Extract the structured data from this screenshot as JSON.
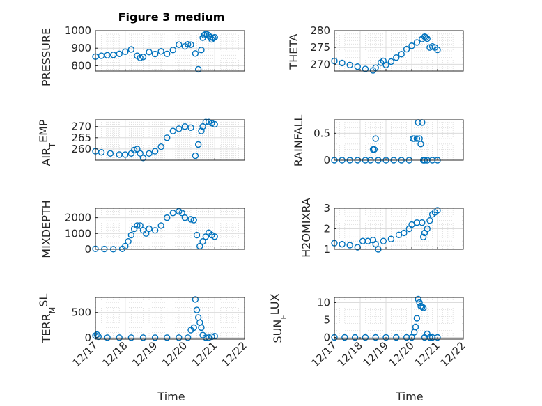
{
  "figure": {
    "title": "Figure 3 medium"
  },
  "colors": {
    "marker": "#0072BD",
    "axis": "#262626",
    "grid": "#dcdcdc"
  },
  "chart_data": [
    {
      "type": "scatter",
      "ylabel": "PRESSURE",
      "xlabel": "",
      "ylim": [
        770,
        1000
      ],
      "yticks": [
        800,
        900,
        1000
      ],
      "xticks": [
        17,
        18,
        19,
        20,
        21,
        22
      ],
      "xtick_labels": [
        "12/17",
        "12/18",
        "12/19",
        "12/20",
        "12/21",
        "12/22"
      ],
      "x": [
        17.0,
        17.2,
        17.4,
        17.6,
        17.8,
        18.0,
        18.2,
        18.4,
        18.5,
        18.6,
        18.8,
        19.0,
        19.2,
        19.4,
        19.6,
        19.8,
        20.0,
        20.1,
        20.2,
        20.35,
        20.45,
        20.55,
        20.6,
        20.65,
        20.7,
        20.75,
        20.8,
        20.85,
        20.9,
        20.95,
        21.0
      ],
      "y": [
        852,
        857,
        860,
        862,
        868,
        880,
        893,
        857,
        845,
        850,
        878,
        867,
        882,
        868,
        890,
        920,
        910,
        922,
        920,
        870,
        780,
        890,
        960,
        975,
        980,
        978,
        972,
        962,
        950,
        958,
        962
      ]
    },
    {
      "type": "scatter",
      "ylabel": "THETA",
      "xlabel": "",
      "ylim": [
        268,
        280
      ],
      "yticks": [
        270,
        275,
        280
      ],
      "xticks": [
        17,
        18,
        19,
        20,
        21,
        22
      ],
      "xtick_labels": [
        "12/17",
        "12/18",
        "12/19",
        "12/20",
        "12/21",
        "12/22"
      ],
      "x": [
        17.0,
        17.3,
        17.6,
        17.9,
        18.2,
        18.5,
        18.6,
        18.8,
        18.9,
        19.0,
        19.2,
        19.4,
        19.6,
        19.8,
        20.0,
        20.2,
        20.4,
        20.5,
        20.55,
        20.6,
        20.7,
        20.8,
        20.9,
        21.0
      ],
      "y": [
        271,
        270.4,
        269.8,
        269.3,
        268.6,
        268.2,
        269,
        270.5,
        271,
        269.8,
        270.8,
        272,
        273,
        274.5,
        275.5,
        276.5,
        277.5,
        278.2,
        278,
        277.6,
        275,
        275.3,
        275,
        274.3
      ]
    },
    {
      "type": "scatter",
      "ylabel": "AIR_TEMP",
      "xlabel": "",
      "ylim": [
        255,
        273
      ],
      "yticks": [
        260,
        265,
        270
      ],
      "xticks": [
        17,
        18,
        19,
        20,
        21,
        22
      ],
      "xtick_labels": [
        "12/17",
        "12/18",
        "12/19",
        "12/20",
        "12/21",
        "12/22"
      ],
      "x": [
        17.0,
        17.2,
        17.5,
        17.8,
        18.0,
        18.2,
        18.3,
        18.4,
        18.5,
        18.6,
        18.8,
        19.0,
        19.2,
        19.4,
        19.6,
        19.8,
        20.0,
        20.2,
        20.35,
        20.45,
        20.55,
        20.6,
        20.7,
        20.8,
        20.9,
        21.0
      ],
      "y": [
        259,
        258.5,
        258,
        257.5,
        257.5,
        258,
        259.5,
        260,
        258,
        256,
        258,
        259,
        261,
        265,
        268,
        269,
        270,
        269.5,
        257,
        262,
        268,
        270,
        272,
        272,
        271.5,
        271
      ]
    },
    {
      "type": "scatter",
      "ylabel": "RAINFALL",
      "xlabel": "",
      "ylim": [
        0,
        0.75
      ],
      "yticks": [
        0,
        0.5
      ],
      "xticks": [
        17,
        18,
        19,
        20,
        21,
        22
      ],
      "xtick_labels": [
        "12/17",
        "12/18",
        "12/19",
        "12/20",
        "12/21",
        "12/22"
      ],
      "x": [
        17.0,
        17.3,
        17.6,
        17.9,
        18.2,
        18.4,
        18.5,
        18.55,
        18.6,
        18.7,
        19.0,
        19.3,
        19.6,
        19.9,
        20.05,
        20.1,
        20.2,
        20.25,
        20.3,
        20.35,
        20.4,
        20.45,
        20.5,
        20.6,
        20.8,
        21.0
      ],
      "y": [
        0,
        0,
        0,
        0,
        0,
        0,
        0.2,
        0.2,
        0.4,
        0,
        0,
        0,
        0,
        0,
        0.4,
        0.4,
        0.4,
        0.7,
        0.4,
        0.3,
        0.7,
        0,
        0,
        0,
        0,
        0
      ]
    },
    {
      "type": "scatter",
      "ylabel": "MIXDEPTH",
      "xlabel": "",
      "ylim": [
        0,
        2600
      ],
      "yticks": [
        0,
        1000,
        2000
      ],
      "xticks": [
        17,
        18,
        19,
        20,
        21,
        22
      ],
      "xtick_labels": [
        "12/17",
        "12/18",
        "12/19",
        "12/20",
        "12/21",
        "12/22"
      ],
      "x": [
        17.0,
        17.3,
        17.6,
        17.9,
        18.0,
        18.1,
        18.2,
        18.3,
        18.4,
        18.5,
        18.6,
        18.7,
        18.8,
        19.0,
        19.2,
        19.4,
        19.6,
        19.8,
        19.9,
        20.0,
        20.2,
        20.3,
        20.4,
        20.5,
        20.6,
        20.7,
        20.8,
        20.9,
        21.0
      ],
      "y": [
        30,
        20,
        10,
        30,
        200,
        500,
        900,
        1300,
        1500,
        1500,
        1200,
        1000,
        1300,
        1200,
        1500,
        2000,
        2300,
        2400,
        2300,
        2000,
        1900,
        1850,
        900,
        200,
        500,
        800,
        1050,
        900,
        800
      ]
    },
    {
      "type": "scatter",
      "ylabel": "H2OMIXRA",
      "xlabel": "",
      "ylim": [
        1,
        3
      ],
      "yticks": [
        1,
        2,
        3
      ],
      "xticks": [
        17,
        18,
        19,
        20,
        21,
        22
      ],
      "xtick_labels": [
        "12/17",
        "12/18",
        "12/19",
        "12/20",
        "12/21",
        "12/22"
      ],
      "x": [
        17.0,
        17.3,
        17.6,
        17.9,
        18.1,
        18.3,
        18.5,
        18.6,
        18.7,
        18.9,
        19.2,
        19.5,
        19.7,
        19.9,
        20.0,
        20.2,
        20.4,
        20.45,
        20.5,
        20.6,
        20.7,
        20.8,
        20.9,
        21.0
      ],
      "y": [
        1.3,
        1.25,
        1.2,
        1.1,
        1.4,
        1.4,
        1.45,
        1.25,
        1.0,
        1.4,
        1.5,
        1.7,
        1.8,
        2.0,
        2.2,
        2.3,
        2.3,
        1.6,
        1.8,
        2.0,
        2.4,
        2.7,
        2.8,
        2.9
      ]
    },
    {
      "type": "scatter",
      "ylabel": "TERR_MSL",
      "xlabel": "Time",
      "ylim": [
        -30,
        800
      ],
      "yticks": [
        0,
        500
      ],
      "xticks": [
        17,
        18,
        19,
        20,
        21,
        22
      ],
      "xtick_labels": [
        "12/17",
        "12/18",
        "12/19",
        "12/20",
        "12/21",
        "12/22"
      ],
      "x": [
        17.0,
        17.05,
        17.1,
        17.4,
        17.8,
        18.2,
        18.6,
        19.0,
        19.4,
        19.8,
        20.1,
        20.2,
        20.3,
        20.35,
        20.4,
        20.45,
        20.5,
        20.55,
        20.6,
        20.7,
        20.8,
        20.9,
        21.0
      ],
      "y": [
        40,
        60,
        20,
        0,
        0,
        0,
        0,
        0,
        0,
        0,
        0,
        150,
        200,
        760,
        550,
        400,
        300,
        200,
        50,
        0,
        0,
        20,
        30
      ]
    },
    {
      "type": "scatter",
      "ylabel": "SUN_FLUX",
      "xlabel": "Time",
      "ylim": [
        -0.5,
        11.5
      ],
      "yticks": [
        0,
        5,
        10
      ],
      "xticks": [
        17,
        18,
        19,
        20,
        21,
        22
      ],
      "xtick_labels": [
        "12/17",
        "12/18",
        "12/19",
        "12/20",
        "12/21",
        "12/22"
      ],
      "x": [
        17.0,
        17.4,
        17.8,
        18.2,
        18.6,
        19.0,
        19.4,
        19.8,
        20.0,
        20.1,
        20.15,
        20.2,
        20.25,
        20.3,
        20.35,
        20.4,
        20.45,
        20.5,
        20.6,
        20.7,
        20.8,
        21.0
      ],
      "y": [
        0,
        0,
        0,
        0,
        0,
        0,
        0,
        0,
        0,
        1.5,
        3,
        5.5,
        11,
        10,
        9,
        8.8,
        8.5,
        0,
        1,
        0,
        0,
        0
      ]
    }
  ],
  "labels": {
    "p0_ylabel": "PRESSURE",
    "p1_ylabel": "THETA",
    "p2_ylabel_main": "AIR",
    "p2_ylabel_sub": "T",
    "p2_ylabel_tail": "EMP",
    "p3_ylabel": "RAINFALL",
    "p4_ylabel": "MIXDEPTH",
    "p5_ylabel": "H2OMIXRA",
    "p6_ylabel_main": "TERR",
    "p6_ylabel_sub": "M",
    "p6_ylabel_tail": "SL",
    "p7_ylabel_main": "SUN",
    "p7_ylabel_sub": "F",
    "p7_ylabel_tail": "LUX",
    "xlabel_left": "Time",
    "xlabel_right": "Time"
  }
}
